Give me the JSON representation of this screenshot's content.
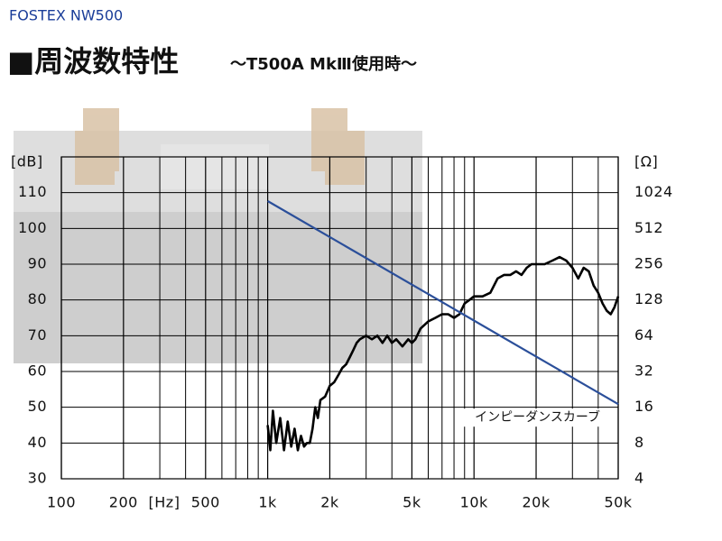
{
  "header": {
    "brand": "FOSTEX NW500"
  },
  "chart_data": {
    "type": "line",
    "title": "■周波数特性",
    "subtitle": "～T500A MkⅢ使用時～",
    "xlabel": "[Hz]",
    "ylabel": "[dB]",
    "y2label": "[Ω]",
    "xscale": "log",
    "y2scale": "log",
    "xlim": [
      100,
      50000
    ],
    "ylim": [
      30,
      120
    ],
    "y2lim": [
      4,
      2048
    ],
    "xticks": [
      100,
      200,
      500,
      {
        "value": 1000,
        "label": "1k"
      },
      {
        "value": 2000,
        "label": "2k"
      },
      {
        "value": 5000,
        "label": "5k"
      },
      {
        "value": 10000,
        "label": "10k"
      },
      {
        "value": 20000,
        "label": "20k"
      },
      {
        "value": 50000,
        "label": "50k"
      }
    ],
    "minor_xticks": [
      300,
      400,
      600,
      700,
      800,
      900,
      3000,
      4000,
      6000,
      7000,
      8000,
      9000,
      30000,
      40000
    ],
    "yticks": [
      30,
      40,
      50,
      60,
      70,
      80,
      90,
      100,
      110
    ],
    "y2ticks": [
      4,
      8,
      16,
      32,
      64,
      128,
      256,
      512,
      1024
    ],
    "grid": true,
    "series": [
      {
        "color": "#000000",
        "x": [
          1000,
          1030,
          1060,
          1100,
          1150,
          1200,
          1250,
          1300,
          1350,
          1400,
          1450,
          1500,
          1550,
          1600,
          1650,
          1700,
          1750,
          1800,
          1900,
          2000,
          2100,
          2200,
          2300,
          2400,
          2500,
          2600,
          2700,
          2800,
          3000,
          3200,
          3400,
          3600,
          3800,
          4000,
          4200,
          4500,
          4800,
          5000,
          5200,
          5500,
          6000,
          6500,
          7000,
          7500,
          8000,
          8500,
          9000,
          9500,
          10000,
          11000,
          12000,
          13000,
          14000,
          15000,
          16000,
          17000,
          18000,
          19000,
          20000,
          22000,
          24000,
          26000,
          28000,
          30000,
          32000,
          34000,
          36000,
          38000,
          40000,
          42000,
          44000,
          46000,
          48000,
          50000
        ],
        "values": [
          45,
          38,
          49,
          40,
          47,
          38,
          46,
          39,
          44,
          38,
          42,
          39,
          40,
          40,
          44,
          50,
          47,
          52,
          53,
          56,
          57,
          59,
          61,
          62,
          64,
          66,
          68,
          69,
          70,
          69,
          70,
          68,
          70,
          68,
          69,
          67,
          69,
          68,
          69,
          72,
          74,
          75,
          76,
          76,
          75,
          76,
          79,
          80,
          81,
          81,
          82,
          86,
          87,
          87,
          88,
          87,
          89,
          90,
          90,
          90,
          91,
          92,
          91,
          89,
          86,
          89,
          88,
          84,
          82,
          79,
          77,
          76,
          78,
          81
        ]
      },
      {
        "name": "インピーダンスカーブ",
        "color": "#2b4f9a",
        "axis": "y2",
        "x": [
          1000,
          50000
        ],
        "values": [
          870,
          17
        ]
      }
    ]
  }
}
